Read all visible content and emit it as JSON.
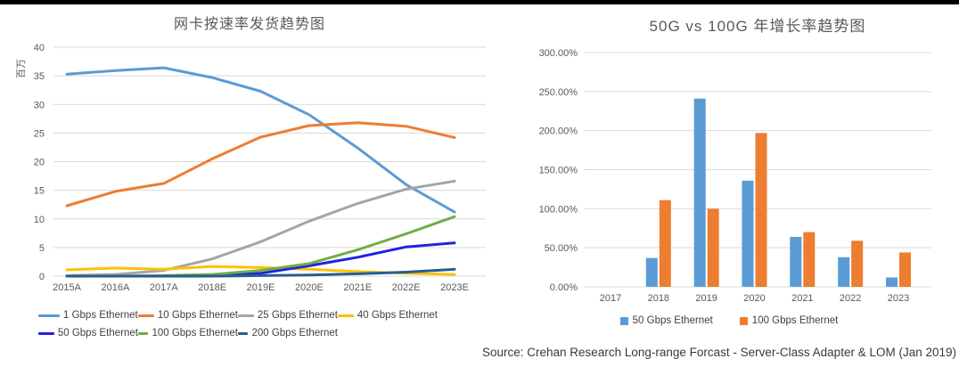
{
  "page": {
    "source_note": "Source: Crehan Research Long-range Forcast - Server-Class Adapter & LOM (Jan 2019)"
  },
  "colors": {
    "axis_text": "#595959",
    "gridline": "#d9d9d9",
    "title_text": "#595959",
    "legend_text": "#404040"
  },
  "chart_data": [
    {
      "type": "line",
      "title": "网卡按速率发货趋势图",
      "ylabel": "百万",
      "xlabel": "",
      "categories": [
        "2015A",
        "2016A",
        "2017A",
        "2018E",
        "2019E",
        "2020E",
        "2021E",
        "2022E",
        "2023E"
      ],
      "y_ticks": [
        "0",
        "5",
        "10",
        "15",
        "20",
        "25",
        "30",
        "35",
        "40"
      ],
      "ylim": [
        0,
        40
      ],
      "grid": true,
      "legend_position": "bottom",
      "series": [
        {
          "name": "1 Gbps Ethernet",
          "color": "#5B9BD5",
          "values": [
            35.3,
            35.9,
            36.4,
            34.7,
            32.3,
            28.2,
            22.4,
            16.0,
            11.2
          ]
        },
        {
          "name": "10 Gbps Ethernet",
          "color": "#ED7D31",
          "values": [
            12.3,
            14.8,
            16.2,
            20.5,
            24.3,
            26.3,
            26.8,
            26.2,
            24.2
          ]
        },
        {
          "name": "25 Gbps Ethernet",
          "color": "#A5A5A5",
          "values": [
            0.1,
            0.3,
            1.0,
            3.0,
            6.0,
            9.6,
            12.7,
            15.2,
            16.6
          ]
        },
        {
          "name": "40 Gbps Ethernet",
          "color": "#FFC000",
          "values": [
            1.1,
            1.4,
            1.2,
            1.7,
            1.5,
            1.2,
            0.8,
            0.5,
            0.3
          ]
        },
        {
          "name": "50 Gbps Ethernet",
          "color": "#2122DF",
          "values": [
            0.0,
            0.0,
            0.0,
            0.1,
            0.5,
            1.8,
            3.3,
            5.1,
            5.8
          ]
        },
        {
          "name": "100 Gbps Ethernet",
          "color": "#70AD47",
          "values": [
            0.0,
            0.0,
            0.1,
            0.3,
            1.0,
            2.2,
            4.6,
            7.4,
            10.4
          ]
        },
        {
          "name": "200 Gbps Ethernet",
          "color": "#255E91",
          "values": [
            0.0,
            0.0,
            0.0,
            0.0,
            0.1,
            0.2,
            0.4,
            0.7,
            1.2
          ]
        }
      ]
    },
    {
      "type": "bar",
      "title": "50G vs 100G 年增长率趋势图",
      "ylabel": "",
      "xlabel": "",
      "categories": [
        "2017",
        "2018",
        "2019",
        "2020",
        "2021",
        "2022",
        "2023"
      ],
      "y_ticks": [
        "0.00%",
        "50.00%",
        "100.00%",
        "150.00%",
        "200.00%",
        "250.00%",
        "300.00%"
      ],
      "ylim": [
        0,
        300
      ],
      "grid": true,
      "legend_position": "bottom",
      "series": [
        {
          "name": "50 Gbps Ethernet",
          "color": "#5B9BD5",
          "unit": "%",
          "values": [
            0,
            37,
            241,
            136,
            64,
            38,
            12
          ]
        },
        {
          "name": "100 Gbps Ethernet",
          "color": "#ED7D31",
          "unit": "%",
          "values": [
            0,
            111,
            100,
            197,
            70,
            59,
            44
          ]
        }
      ]
    }
  ]
}
